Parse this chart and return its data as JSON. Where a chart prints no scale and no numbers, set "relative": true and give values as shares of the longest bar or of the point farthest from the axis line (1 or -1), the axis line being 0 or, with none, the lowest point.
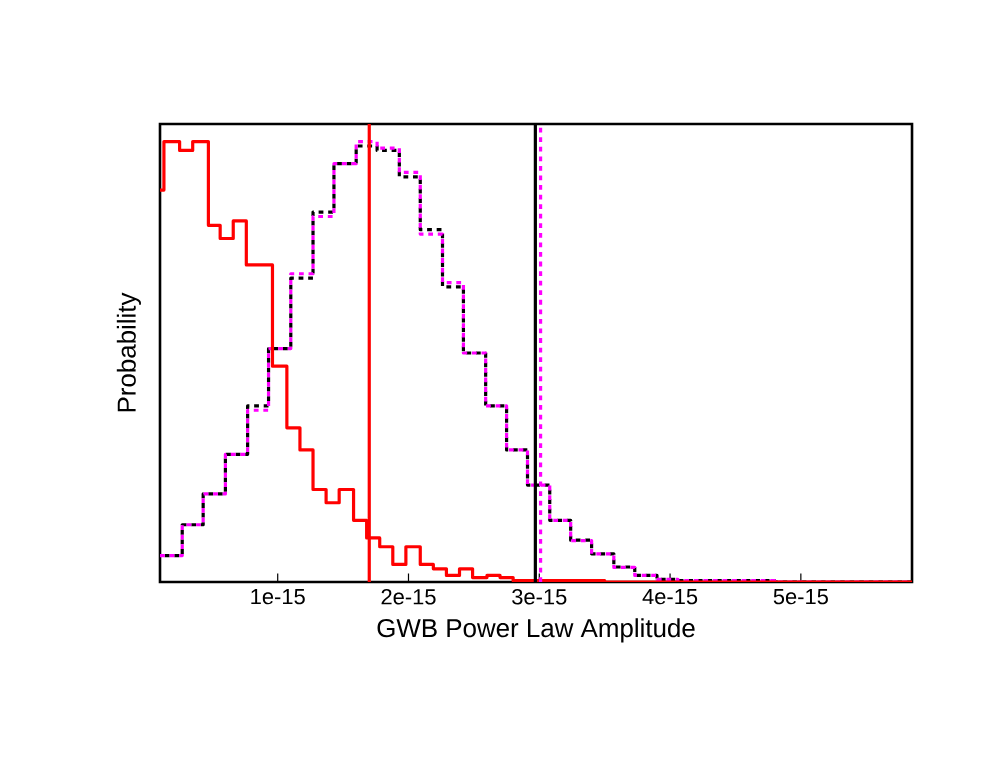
{
  "chart_data": {
    "type": "step",
    "xlabel": "GWB Power Law Amplitude",
    "ylabel": "Probability",
    "relative": true,
    "tick_labels": "x",
    "xlim": [
      1e-16,
      5.85e-15
    ],
    "xticks": [
      {
        "value": 1e-15,
        "label": "1e-15"
      },
      {
        "value": 2e-15,
        "label": "2e-15"
      },
      {
        "value": 3e-15,
        "label": "3e-15"
      },
      {
        "value": 4e-15,
        "label": "4e-15"
      },
      {
        "value": 5e-15,
        "label": "5e-15"
      }
    ],
    "series": [
      {
        "color": "#000000",
        "line_style": "dotted",
        "x": [
          1e-16,
          2.7e-16,
          4.3e-16,
          6e-16,
          7.7e-16,
          9.3e-16,
          1.1e-15,
          1.27e-15,
          1.43e-15,
          1.6e-15,
          1.76e-15,
          1.93e-15,
          2.09e-15,
          2.26e-15,
          2.42e-15,
          2.59e-15,
          2.75e-15,
          2.91e-15,
          3.08e-15,
          3.24e-15,
          3.4e-15,
          3.57e-15,
          3.73e-15,
          3.9e-15,
          4.06e-15,
          4.8e-15,
          5.85e-15
        ],
        "values": [
          0.06,
          0.13,
          0.2,
          0.29,
          0.4,
          0.53,
          0.69,
          0.84,
          0.95,
          0.99,
          0.98,
          0.92,
          0.8,
          0.67,
          0.52,
          0.4,
          0.3,
          0.22,
          0.14,
          0.095,
          0.064,
          0.034,
          0.015,
          0.006,
          0.003,
          0,
          0
        ]
      },
      {
        "color": "#ff00ff",
        "line_style": "dotted",
        "x": [
          1e-16,
          2.7e-16,
          4.3e-16,
          6e-16,
          7.7e-16,
          9.3e-16,
          1.1e-15,
          1.27e-15,
          1.43e-15,
          1.6e-15,
          1.76e-15,
          1.93e-15,
          2.09e-15,
          2.26e-15,
          2.42e-15,
          2.59e-15,
          2.75e-15,
          2.91e-15,
          3.08e-15,
          3.24e-15,
          3.4e-15,
          3.57e-15,
          3.73e-15,
          3.9e-15,
          4.06e-15,
          4.8e-15,
          5.85e-15
        ],
        "values": [
          0.06,
          0.13,
          0.2,
          0.29,
          0.39,
          0.53,
          0.7,
          0.83,
          0.95,
          1.0,
          0.985,
          0.93,
          0.79,
          0.68,
          0.52,
          0.4,
          0.3,
          0.22,
          0.14,
          0.094,
          0.064,
          0.033,
          0.015,
          0.006,
          0.003,
          0,
          0
        ]
      },
      {
        "color": "#ff0000",
        "line_style": "solid",
        "x": [
          1e-16,
          1.3e-16,
          2.5e-16,
          3.5e-16,
          4.7e-16,
          5.6e-16,
          6.6e-16,
          7.6e-16,
          9.6e-16,
          1.07e-15,
          1.17e-15,
          1.27e-15,
          1.37e-15,
          1.47e-15,
          1.58e-15,
          1.68e-15,
          1.78e-15,
          1.88e-15,
          1.98e-15,
          2.09e-15,
          2.19e-15,
          2.29e-15,
          2.39e-15,
          2.49e-15,
          2.6e-15,
          2.7e-15,
          2.8e-15,
          3.5e-15,
          5.85e-15
        ],
        "values": [
          0.89,
          1.0,
          0.98,
          1.0,
          0.81,
          0.78,
          0.82,
          0.72,
          0.49,
          0.35,
          0.3,
          0.21,
          0.18,
          0.21,
          0.14,
          0.1,
          0.08,
          0.04,
          0.08,
          0.04,
          0.03,
          0.015,
          0.03,
          0.01,
          0.015,
          0.01,
          0.003,
          0,
          0
        ]
      }
    ],
    "ref_lines": [
      {
        "axis": "x",
        "value": 1.7e-15,
        "color": "#ff0000",
        "line_style": "solid"
      },
      {
        "axis": "x",
        "value": 2.97e-15,
        "color": "#000000",
        "line_style": "solid"
      },
      {
        "axis": "x",
        "value": 3.01e-15,
        "color": "#ff00ff",
        "line_style": "dotted"
      }
    ]
  }
}
